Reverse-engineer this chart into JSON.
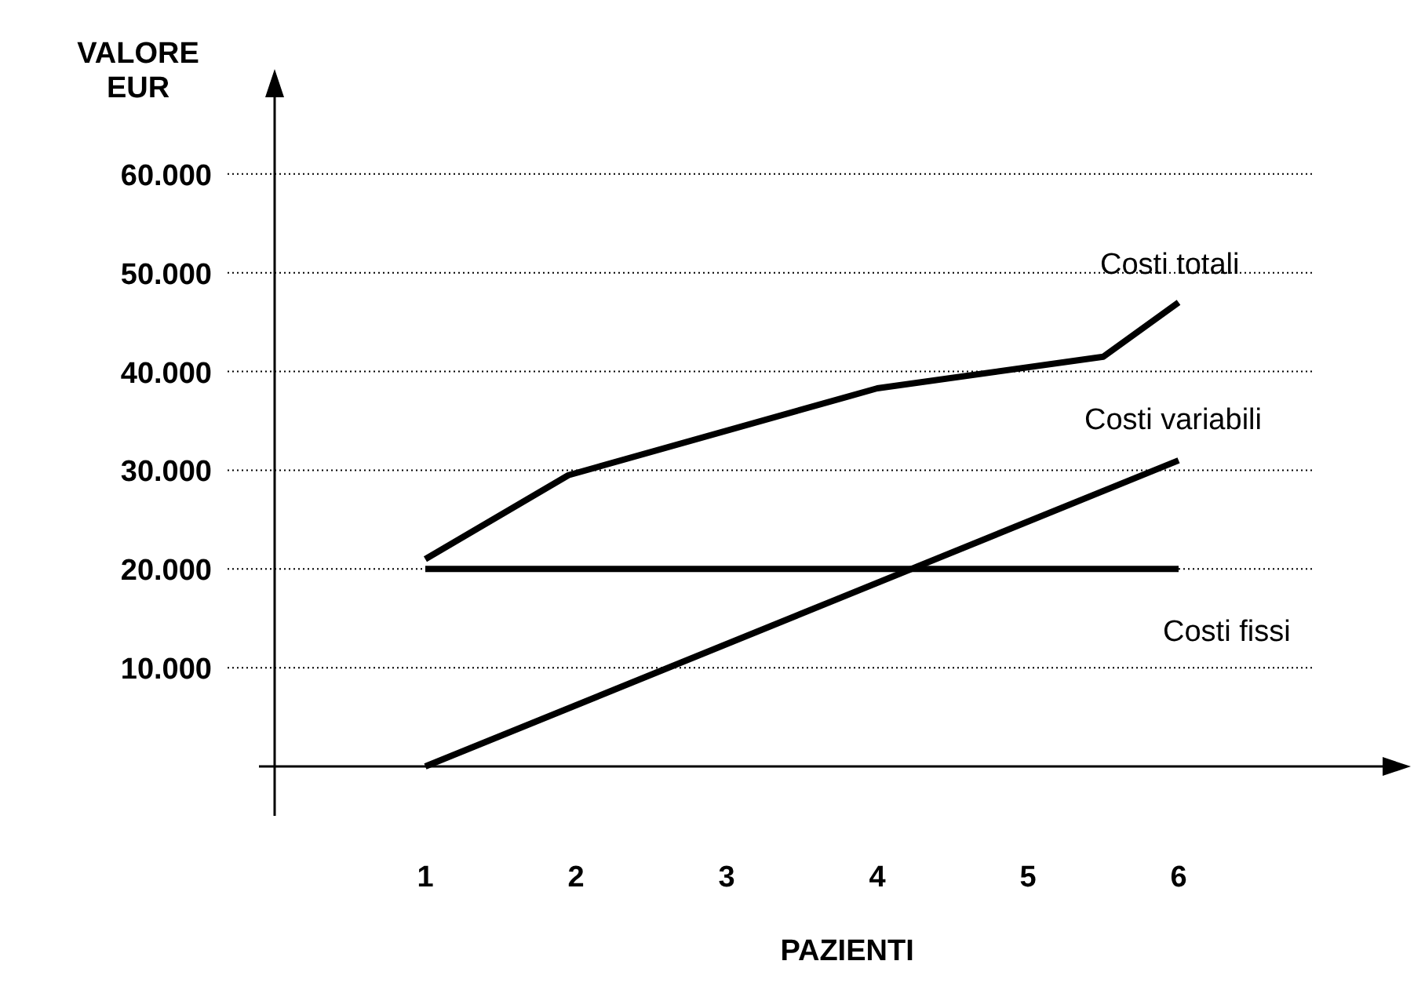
{
  "chart_data": {
    "type": "line",
    "xlabel": "PAZIENTI",
    "ylabel": "VALORE EUR",
    "series": [
      {
        "name": "Costi totali",
        "color": "#000000",
        "x": [
          1,
          1.95,
          4,
          5.5,
          6
        ],
        "values": [
          21000,
          29500,
          38300,
          41500,
          47000
        ]
      },
      {
        "name": "Costi variabili",
        "color": "#000000",
        "x": [
          1,
          6
        ],
        "values": [
          0,
          31000
        ]
      },
      {
        "name": "Costi fissi",
        "color": "#000000",
        "x": [
          1,
          6
        ],
        "values": [
          20000,
          20000
        ]
      }
    ],
    "xlim": [
      0,
      7.5
    ],
    "ylim": [
      -5000,
      70000
    ],
    "xticks": [
      1,
      2,
      3,
      4,
      5,
      6
    ],
    "yticks": [
      {
        "value": 10000,
        "label": "10.000"
      },
      {
        "value": 20000,
        "label": "20.000"
      },
      {
        "value": 30000,
        "label": "30.000"
      },
      {
        "value": 40000,
        "label": "40.000"
      },
      {
        "value": 50000,
        "label": "50.000"
      },
      {
        "value": 60000,
        "label": "60.000"
      }
    ],
    "grid": "y",
    "marker": "none",
    "line_style": "solid"
  }
}
